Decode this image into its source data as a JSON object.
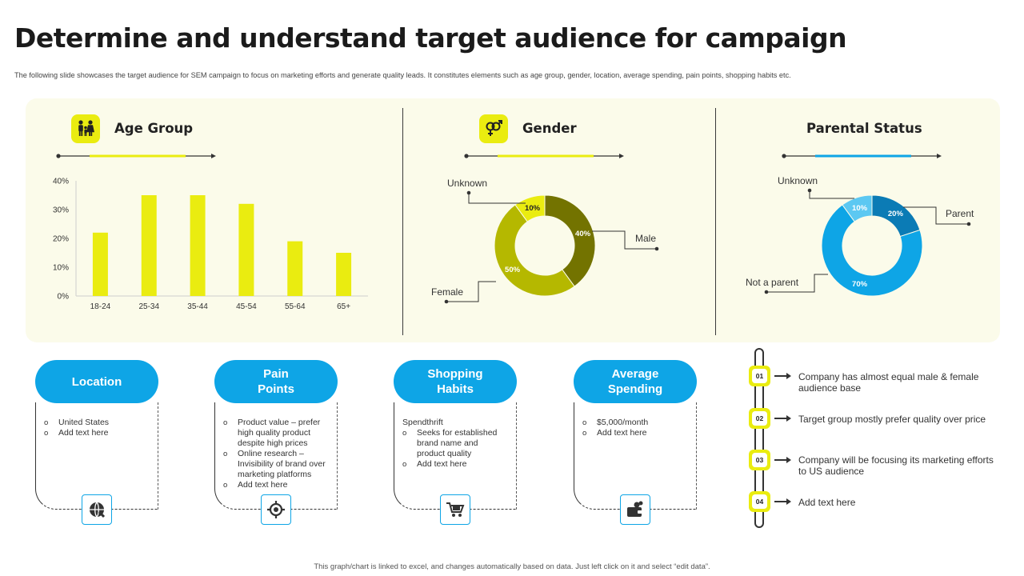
{
  "title": "Determine and understand target audience for campaign",
  "subtitle": "The following slide showcases the target audience for SEM campaign to focus on marketing efforts and generate quality leads. It constitutes elements such as age group, gender, location, average spending, pain points, shopping habits etc.",
  "sections": {
    "age": {
      "title": "Age Group",
      "icon": "family-icon"
    },
    "gender": {
      "title": "Gender",
      "icon": "gender-symbols-icon"
    },
    "parental": {
      "title": "Parental Status"
    }
  },
  "colors": {
    "accent_yellow": "#eaec10",
    "accent_blue": "#0ea5e6",
    "panel_bg": "#fbfbea",
    "male": "#737300",
    "female": "#b5b800",
    "gender_unknown": "#eaec10",
    "parent": "#0b7bb5",
    "not_parent": "#0ea5e6",
    "parent_unknown": "#5cc8f2"
  },
  "chart_data": [
    {
      "type": "bar",
      "categories": [
        "18-24",
        "25-34",
        "35-44",
        "45-54",
        "55-64",
        "65+"
      ],
      "values": [
        22,
        35,
        35,
        32,
        19,
        15
      ],
      "yticks": [
        "0%",
        "10%",
        "20%",
        "30%",
        "40%"
      ],
      "ylim": [
        0,
        40
      ],
      "color": "#eaec10",
      "grid": false
    },
    {
      "type": "pie",
      "donut": true,
      "slices": [
        {
          "label": "Male",
          "value": 40,
          "display": "40%",
          "color": "#737300"
        },
        {
          "label": "Female",
          "value": 50,
          "display": "50%",
          "color": "#b5b800"
        },
        {
          "label": "Unknown",
          "value": 10,
          "display": "10%",
          "color": "#eaec10"
        }
      ]
    },
    {
      "type": "pie",
      "donut": true,
      "slices": [
        {
          "label": "Parent",
          "value": 20,
          "display": "20%",
          "color": "#0b7bb5"
        },
        {
          "label": "Not a parent",
          "value": 70,
          "display": "70%",
          "color": "#0ea5e6"
        },
        {
          "label": "Unknown",
          "value": 10,
          "display": "10%",
          "color": "#5cc8f2"
        }
      ]
    }
  ],
  "cards": [
    {
      "title": "Location",
      "icon": "globe-icon",
      "items": [
        {
          "text": "United States",
          "bullet": true
        },
        {
          "text": "Add text here",
          "bullet": true
        }
      ]
    },
    {
      "title": "Pain\nPoints",
      "icon": "target-icon",
      "items": [
        {
          "text": "Product value – prefer high quality product despite high prices",
          "bullet": true
        },
        {
          "text": "Online research – Invisibility of brand over marketing platforms",
          "bullet": true
        },
        {
          "text": "Add text here",
          "bullet": true
        }
      ]
    },
    {
      "title": "Shopping\nHabits",
      "icon": "shopping-cart-icon",
      "items": [
        {
          "text": "Spendthrift",
          "bullet": false
        },
        {
          "text": "Seeks for established brand name and product quality",
          "bullet": true
        },
        {
          "text": "Add text here",
          "bullet": true
        }
      ]
    },
    {
      "title": "Average\nSpending",
      "icon": "wallet-money-icon",
      "items": [
        {
          "text": "$5,000/month",
          "bullet": true
        },
        {
          "text": "Add text here",
          "bullet": true
        }
      ]
    }
  ],
  "timeline": [
    {
      "num": "01",
      "text": "Company has almost equal male & female audience base"
    },
    {
      "num": "02",
      "text": "Target group mostly prefer quality over price"
    },
    {
      "num": "03",
      "text": "Company will be focusing its marketing efforts to US audience"
    },
    {
      "num": "04",
      "text": "Add text here"
    }
  ],
  "footer": "This graph/chart is linked to excel, and changes automatically based on data. Just left click on it and select “edit data”."
}
